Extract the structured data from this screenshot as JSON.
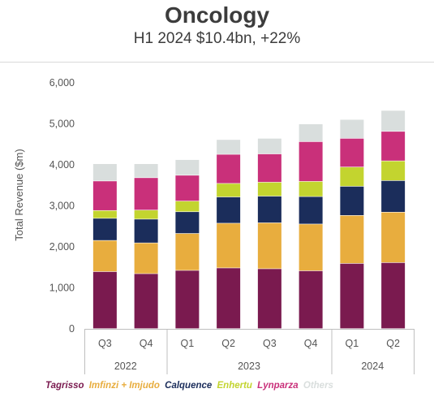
{
  "header": {
    "title": "Oncology",
    "subtitle": "H1 2024 $10.4bn, +22%"
  },
  "chart_data": {
    "type": "bar",
    "stacked": true,
    "categories": [
      "Q3",
      "Q4",
      "Q1",
      "Q2",
      "Q3",
      "Q4",
      "Q1",
      "Q2"
    ],
    "groups": [
      {
        "label": "2022",
        "span": 2
      },
      {
        "label": "2023",
        "span": 4
      },
      {
        "label": "2024",
        "span": 2
      }
    ],
    "ylabel": "Total Revenue ($m)",
    "ylim": [
      0,
      6000
    ],
    "yticks": [
      "0",
      "1,000",
      "2,000",
      "3,000",
      "4,000",
      "5,000",
      "6,000"
    ],
    "ytick_values": [
      0,
      1000,
      2000,
      3000,
      4000,
      5000,
      6000
    ],
    "grid": false,
    "legend_position": "bottom",
    "series": [
      {
        "name": "Tagrisso",
        "color": "#7a1a4f",
        "values": [
          1390,
          1340,
          1420,
          1480,
          1460,
          1410,
          1590,
          1610
        ]
      },
      {
        "name": "Imfinzi + Imjudo",
        "color": "#e8ad3e",
        "values": [
          760,
          750,
          900,
          1090,
          1120,
          1140,
          1170,
          1230
        ]
      },
      {
        "name": "Calquence",
        "color": "#1b2d5b",
        "values": [
          540,
          580,
          530,
          640,
          650,
          670,
          710,
          770
        ]
      },
      {
        "name": "Enhertu",
        "color": "#c3d42f",
        "values": [
          190,
          220,
          260,
          330,
          340,
          370,
          470,
          480
        ]
      },
      {
        "name": "Lynparza",
        "color": "#c9307a",
        "values": [
          720,
          790,
          630,
          710,
          690,
          970,
          700,
          720
        ]
      },
      {
        "name": "Others",
        "color": "#d9dedd",
        "values": [
          420,
          340,
          380,
          360,
          380,
          430,
          460,
          510
        ]
      }
    ]
  }
}
